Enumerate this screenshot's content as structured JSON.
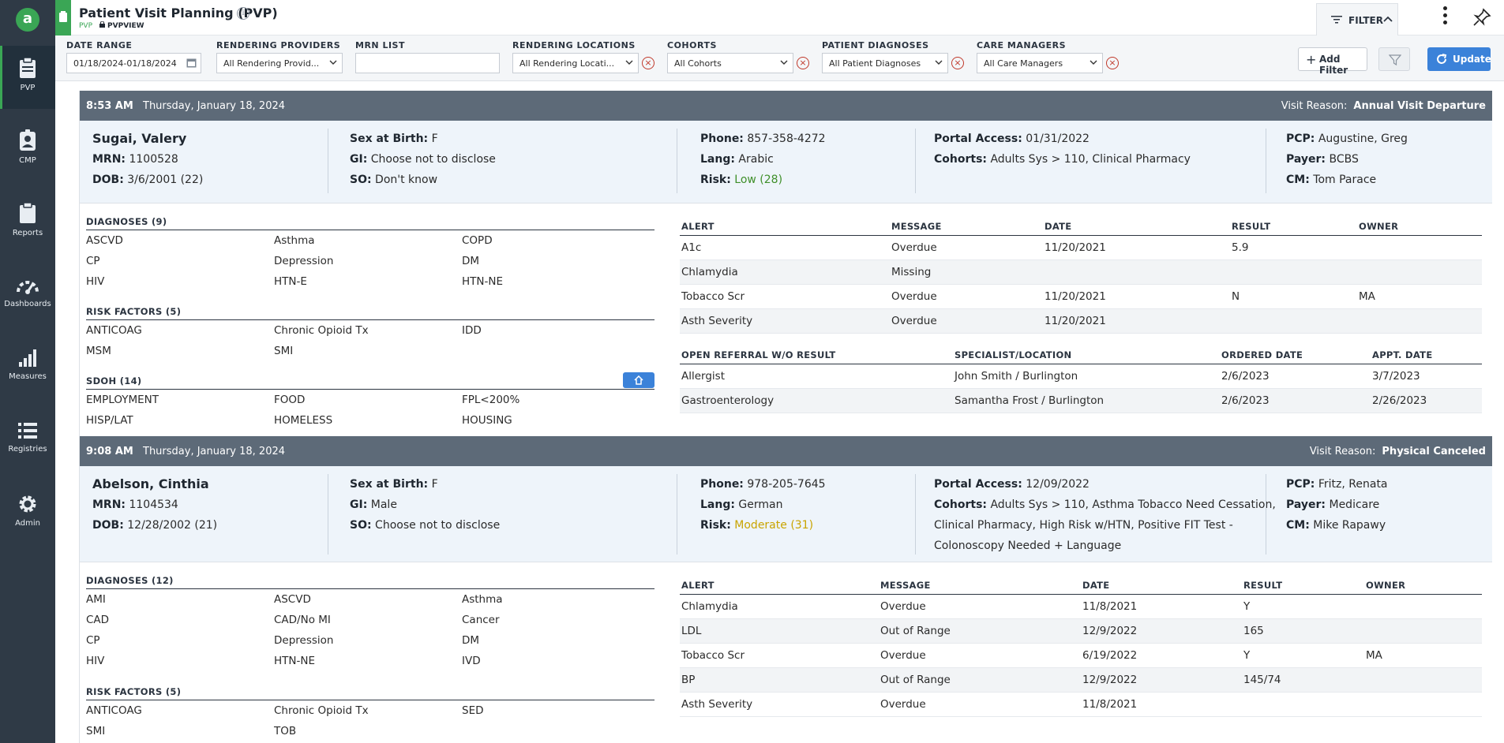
{
  "app": {
    "logo_letter": "a",
    "title": "Patient Visit Planning (PVP)",
    "info_glyph": "i",
    "sub_module": "PVP",
    "sub_view": "PVPVIEW",
    "filter_tab": "FILTER"
  },
  "nav": [
    {
      "label": "PVP",
      "icon": "clipboard-icon"
    },
    {
      "label": "CMP",
      "icon": "person-badge-icon"
    },
    {
      "label": "Reports",
      "icon": "report-clipboard-icon"
    },
    {
      "label": "Dashboards",
      "icon": "gauge-icon"
    },
    {
      "label": "Measures",
      "icon": "bar-chart-icon"
    },
    {
      "label": "Registries",
      "icon": "list-icon"
    },
    {
      "label": "Admin",
      "icon": "gear-icon"
    }
  ],
  "filters": {
    "date_range": {
      "label": "DATE RANGE",
      "value": "01/18/2024-01/18/2024"
    },
    "providers": {
      "label": "RENDERING PROVIDERS",
      "value": "All Rendering Provid..."
    },
    "mrn_list": {
      "label": "MRN LIST",
      "value": ""
    },
    "locations": {
      "label": "RENDERING LOCATIONS",
      "value": "All Rendering Locati..."
    },
    "cohorts": {
      "label": "COHORTS",
      "value": "All Cohorts"
    },
    "diagnoses": {
      "label": "PATIENT DIAGNOSES",
      "value": "All Patient Diagnoses"
    },
    "care_managers": {
      "label": "CARE MANAGERS",
      "value": "All Care Managers"
    },
    "add_filter": "Add Filter",
    "update": "Update",
    "clear_glyph": "×"
  },
  "visits": [
    {
      "time": "8:53 AM",
      "date": "Thursday, January 18, 2024",
      "reason_label": "Visit Reason:",
      "reason": "Annual Visit Departure",
      "name": "Sugai, Valery",
      "mrn_label": "MRN:",
      "mrn": "1100528",
      "dob_label": "DOB:",
      "dob": "3/6/2001 (22)",
      "sex_label": "Sex at Birth:",
      "sex": "F",
      "gi_label": "GI:",
      "gi": "Choose not to disclose",
      "so_label": "SO:",
      "so": "Don't know",
      "phone_label": "Phone:",
      "phone": "857-358-4272",
      "lang_label": "Lang:",
      "lang": "Arabic",
      "risk_label": "Risk:",
      "risk": "Low (28)",
      "risk_color": "#3f8f2a",
      "portal_label": "Portal Access:",
      "portal": "01/31/2022",
      "cohorts_label": "Cohorts:",
      "cohorts": "Adults Sys > 110, Clinical Pharmacy",
      "pcp_label": "PCP:",
      "pcp": "Augustine, Greg",
      "payer_label": "Payer:",
      "payer": "BCBS",
      "cm_label": "CM:",
      "cm": "Tom Parace",
      "diagnoses_title": "DIAGNOSES (9)",
      "diagnoses": [
        [
          "ASCVD",
          "Asthma",
          "COPD"
        ],
        [
          "CP",
          "Depression",
          "DM"
        ],
        [
          "HIV",
          "HTN-E",
          "HTN-NE"
        ]
      ],
      "risk_title": "RISK FACTORS (5)",
      "risk_factors": [
        [
          "ANTICOAG",
          "Chronic Opioid Tx",
          "IDD"
        ],
        [
          "MSM",
          "SMI",
          ""
        ]
      ],
      "sdoh_title": "SDOH (14)",
      "sdoh": [
        [
          "EMPLOYMENT",
          "FOOD",
          "FPL<200%"
        ],
        [
          "HISP/LAT",
          "HOMELESS",
          "HOUSING"
        ]
      ],
      "alerts_headers": [
        "ALERT",
        "MESSAGE",
        "DATE",
        "RESULT",
        "OWNER"
      ],
      "alerts": [
        [
          "A1c",
          "Overdue",
          "11/20/2021",
          "5.9",
          ""
        ],
        [
          "Chlamydia",
          "Missing",
          "",
          "",
          ""
        ],
        [
          "Tobacco Scr",
          "Overdue",
          "11/20/2021",
          "N",
          "MA"
        ],
        [
          "Asth Severity",
          "Overdue",
          "11/20/2021",
          "",
          ""
        ]
      ],
      "referral_headers": [
        "OPEN REFERRAL W/O RESULT",
        "SPECIALIST/LOCATION",
        "ORDERED DATE",
        "APPT. DATE"
      ],
      "referrals": [
        [
          "Allergist",
          "John Smith / Burlington",
          "2/6/2023",
          "3/7/2023"
        ],
        [
          "Gastroenterology",
          "Samantha Frost / Burlington",
          "2/6/2023",
          "2/26/2023"
        ]
      ]
    },
    {
      "time": "9:08 AM",
      "date": "Thursday, January 18, 2024",
      "reason_label": "Visit Reason:",
      "reason": "Physical Canceled",
      "name": "Abelson, Cinthia",
      "mrn_label": "MRN:",
      "mrn": "1104534",
      "dob_label": "DOB:",
      "dob": "12/28/2002 (21)",
      "sex_label": "Sex at Birth:",
      "sex": "F",
      "gi_label": "GI:",
      "gi": "Male",
      "so_label": "SO:",
      "so": "Choose not to disclose",
      "phone_label": "Phone:",
      "phone": "978-205-7645",
      "lang_label": "Lang:",
      "lang": "German",
      "risk_label": "Risk:",
      "risk": "Moderate (31)",
      "risk_color": "#c9a400",
      "portal_label": "Portal Access:",
      "portal": "12/09/2022",
      "cohorts_label": "Cohorts:",
      "cohorts_line1": "Adults Sys > 110, Asthma Tobacco Need Cessation,",
      "cohorts_line2": "Clinical Pharmacy, High Risk w/HTN, Positive FIT Test -",
      "cohorts_line3": "Colonoscopy Needed + Language",
      "pcp_label": "PCP:",
      "pcp": "Fritz, Renata",
      "payer_label": "Payer:",
      "payer": "Medicare",
      "cm_label": "CM:",
      "cm": "Mike Rapawy",
      "diagnoses_title": "DIAGNOSES (12)",
      "diagnoses": [
        [
          "AMI",
          "ASCVD",
          "Asthma"
        ],
        [
          "CAD",
          "CAD/No MI",
          "Cancer"
        ],
        [
          "CP",
          "Depression",
          "DM"
        ],
        [
          "HIV",
          "HTN-NE",
          "IVD"
        ]
      ],
      "risk_title": "RISK FACTORS (5)",
      "risk_factors": [
        [
          "ANTICOAG",
          "Chronic Opioid Tx",
          "SED"
        ],
        [
          "SMI",
          "TOB",
          ""
        ]
      ],
      "alerts_headers": [
        "ALERT",
        "MESSAGE",
        "DATE",
        "RESULT",
        "OWNER"
      ],
      "alerts": [
        [
          "Chlamydia",
          "Overdue",
          "11/8/2021",
          "Y",
          ""
        ],
        [
          "LDL",
          "Out of Range",
          "12/9/2022",
          "165",
          ""
        ],
        [
          "Tobacco Scr",
          "Overdue",
          "6/19/2022",
          "Y",
          "MA"
        ],
        [
          "BP",
          "Out of Range",
          "12/9/2022",
          "145/74",
          ""
        ],
        [
          "Asth Severity",
          "Overdue",
          "11/8/2021",
          "",
          ""
        ]
      ]
    }
  ]
}
